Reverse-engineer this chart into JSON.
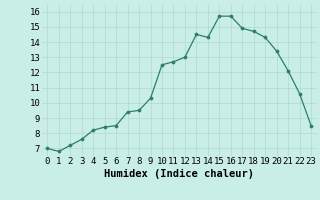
{
  "xlabel": "Humidex (Indice chaleur)",
  "x": [
    0,
    1,
    2,
    3,
    4,
    5,
    6,
    7,
    8,
    9,
    10,
    11,
    12,
    13,
    14,
    15,
    16,
    17,
    18,
    19,
    20,
    21,
    22,
    23
  ],
  "y": [
    7.0,
    6.8,
    7.2,
    7.6,
    8.2,
    8.4,
    8.5,
    9.4,
    9.5,
    10.3,
    12.5,
    12.7,
    13.0,
    14.5,
    14.3,
    15.7,
    15.7,
    14.9,
    14.7,
    14.3,
    13.4,
    12.1,
    10.6,
    8.5
  ],
  "ylim": [
    6.5,
    16.5
  ],
  "yticks": [
    7,
    8,
    9,
    10,
    11,
    12,
    13,
    14,
    15,
    16
  ],
  "xticks": [
    0,
    1,
    2,
    3,
    4,
    5,
    6,
    7,
    8,
    9,
    10,
    11,
    12,
    13,
    14,
    15,
    16,
    17,
    18,
    19,
    20,
    21,
    22,
    23
  ],
  "line_color": "#2e7d6e",
  "marker_color": "#2e7d6e",
  "bg_color": "#c9eee8",
  "grid_color": "#b0d8d0",
  "tick_label_fontsize": 6.5,
  "xlabel_fontsize": 7.5
}
